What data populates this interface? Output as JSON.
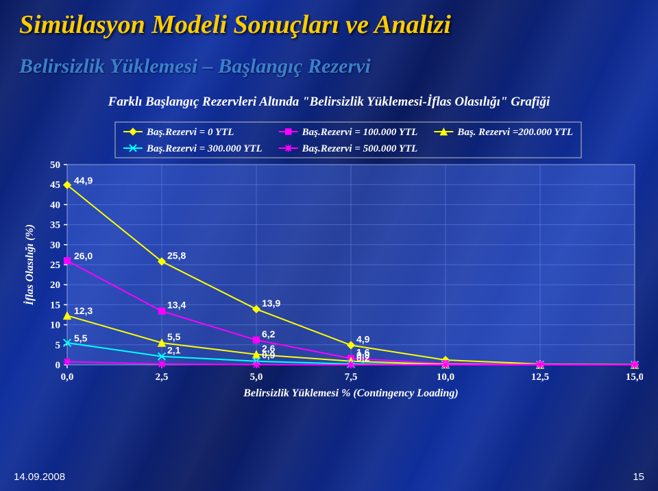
{
  "title": "Simülasyon Modeli Sonuçları ve Analizi",
  "title_color": "#ffcc00",
  "title_fontsize": 38,
  "subtitle": "Belirsizlik Yüklemesi – Başlangıç Rezervi",
  "subtitle_color": "#3b7fd0",
  "subtitle_fontsize": 30,
  "chart": {
    "type": "line",
    "title": "Farklı Başlangıç Rezervleri Altında \"Belirsizlik Yüklemesi-İflas Olasılığı\" Grafiği",
    "xlabel": "Belirsizlik Yüklemesi % (Contingency Loading)",
    "ylabel": "İflas Olasılığı (%)",
    "xlim": [
      0.0,
      15.0
    ],
    "ylim": [
      0,
      50
    ],
    "xticks": [
      "0,0",
      "2,5",
      "5,0",
      "7,5",
      "10,0",
      "12,5",
      "15,0"
    ],
    "xtick_vals": [
      0.0,
      2.5,
      5.0,
      7.5,
      10.0,
      12.5,
      15.0
    ],
    "yticks": [
      0,
      5,
      10,
      15,
      20,
      25,
      30,
      35,
      40,
      45,
      50
    ],
    "background_color": "#0a1a5e",
    "plot_fill": "#4060d0",
    "grid_color": "#6080e0",
    "line_width": 2,
    "marker_size": 9,
    "legend": {
      "border_color": "#c0c0c0",
      "rows": [
        [
          "s0",
          "s1",
          "s2"
        ],
        [
          "s3",
          "s4"
        ]
      ]
    },
    "series": {
      "s0": {
        "label": "Baş.Rezervi = 0 YTL",
        "color": "#ffff00",
        "marker": "diamond",
        "x": [
          0.0,
          2.5,
          5.0,
          7.5,
          10.0,
          12.5,
          15.0
        ],
        "y": [
          44.9,
          25.8,
          13.9,
          4.9,
          1.2,
          0.2,
          0.05
        ],
        "lbl": [
          "44,9",
          "25,8",
          "13,9",
          "4,9",
          "",
          "",
          ""
        ]
      },
      "s1": {
        "label": "Baş.Rezervi = 100.000 YTL",
        "color": "#ff00ff",
        "marker": "square",
        "x": [
          0.0,
          2.5,
          5.0,
          7.5,
          10.0,
          12.5,
          15.0
        ],
        "y": [
          26.0,
          13.4,
          6.2,
          1.6,
          0.3,
          0.1,
          0.0
        ],
        "lbl": [
          "26,0",
          "13,4",
          "6,2",
          "1,6",
          "",
          "",
          ""
        ]
      },
      "s2": {
        "label": "Baş. Rezervi =200.000 YTL",
        "color": "#ffff00",
        "marker": "triangle",
        "x": [
          0.0,
          2.5,
          5.0,
          7.5,
          10.0,
          12.5,
          15.0
        ],
        "y": [
          12.3,
          5.5,
          2.6,
          0.9,
          0.1,
          0.0,
          0.0
        ],
        "lbl": [
          "12,3",
          "5,5",
          "2,6",
          "0,9",
          "",
          "",
          ""
        ]
      },
      "s3": {
        "label": "Baş.Rezervi = 300.000 YTL",
        "color": "#00ffff",
        "marker": "x",
        "x": [
          0.0,
          2.5,
          5.0,
          7.5,
          10.0,
          12.5,
          15.0
        ],
        "y": [
          5.5,
          2.1,
          0.9,
          0.2,
          0.0,
          0.0,
          0.0
        ],
        "lbl": [
          "5,5",
          "2,1",
          "0,9",
          "0,2",
          "",
          "",
          ""
        ]
      },
      "s4": {
        "label": "Baş.Rezervi = 500.000 YTL",
        "color": "#ff00ff",
        "marker": "star",
        "x": [
          0.0,
          2.5,
          5.0,
          7.5,
          10.0,
          12.5,
          15.0
        ],
        "y": [
          0.8,
          0.2,
          0.05,
          0.0,
          0.0,
          0.0,
          0.0
        ],
        "lbl": [
          "",
          "",
          "",
          "",
          "",
          "",
          ""
        ]
      }
    }
  },
  "footer": {
    "date": "14.09.2008",
    "page": "15"
  }
}
